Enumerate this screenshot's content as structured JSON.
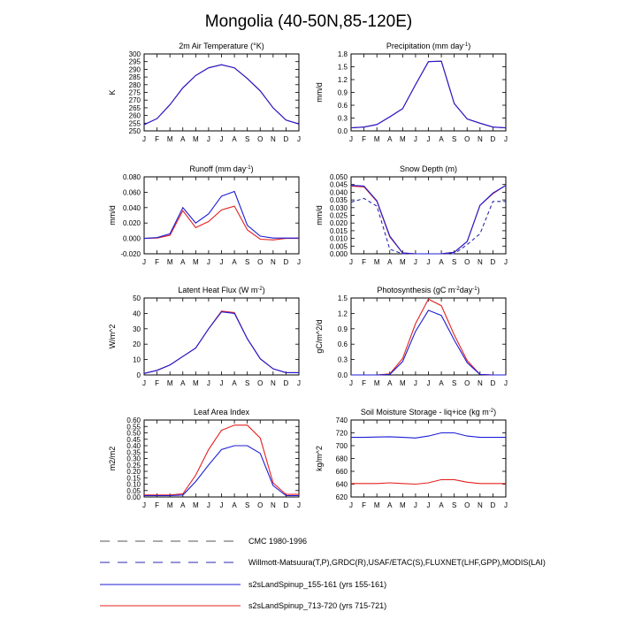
{
  "figure_title": "Mongolia (40-50N,85-120E)",
  "colors": {
    "s2s_155": "#1c1cd6",
    "s2s_713": "#e42020",
    "obs": "#2a2ab0",
    "cmc": "#555555"
  },
  "legend": [
    {
      "label": "CMC 1980-1996",
      "style": "dashed",
      "color": "#555555"
    },
    {
      "label": "Willmott-Matsuura(T,P),GRDC(R),USAF/ETAC(S),FLUXNET(LHF,GPP),MODIS(LAI)",
      "style": "dashed",
      "color": "#2a2ab0"
    },
    {
      "label": "s2sLandSpinup_155-161 (yrs 155-161)",
      "style": "solid",
      "color": "#1c1cd6"
    },
    {
      "label": "s2sLandSpinup_713-720 (yrs 715-721)",
      "style": "solid",
      "color": "#e42020"
    }
  ],
  "chart_data": [
    {
      "type": "line",
      "title": "2m Air Temperature (°K)",
      "ylabel": "K",
      "categories": [
        "J",
        "F",
        "M",
        "A",
        "M",
        "J",
        "J",
        "A",
        "S",
        "O",
        "N",
        "D",
        "J"
      ],
      "ylim": [
        250,
        300
      ],
      "yticks": [
        250,
        255,
        260,
        265,
        270,
        275,
        280,
        285,
        290,
        295,
        300
      ],
      "ytick_labels": [
        "250",
        "255",
        "260",
        "265",
        "270",
        "275",
        "280",
        "285",
        "290",
        "295",
        "300"
      ],
      "series": [
        {
          "color": "#e42020",
          "style": "solid",
          "values": [
            254,
            258,
            267,
            278,
            286,
            291,
            293,
            291,
            284,
            276,
            265,
            257,
            254.5
          ]
        },
        {
          "color": "#1c1cd6",
          "style": "solid",
          "values": [
            254,
            258,
            267,
            278,
            286,
            291,
            293,
            291,
            284,
            276,
            265,
            257,
            254.5
          ]
        }
      ]
    },
    {
      "type": "line",
      "title": "Precipitation (mm day-1)",
      "ylabel": "mm/d",
      "categories": [
        "J",
        "F",
        "M",
        "A",
        "M",
        "J",
        "J",
        "A",
        "S",
        "O",
        "N",
        "D",
        "J"
      ],
      "ylim": [
        0,
        1.8
      ],
      "yticks": [
        0,
        0.3,
        0.6,
        0.9,
        1.2,
        1.5,
        1.8
      ],
      "ytick_labels": [
        "0.0",
        "0.3",
        "0.6",
        "0.9",
        "1.2",
        "1.5",
        "1.8"
      ],
      "series": [
        {
          "color": "#e42020",
          "style": "solid",
          "values": [
            0.07,
            0.09,
            0.15,
            0.33,
            0.52,
            1.08,
            1.62,
            1.63,
            0.64,
            0.28,
            0.18,
            0.09,
            0.07
          ]
        },
        {
          "color": "#1c1cd6",
          "style": "solid",
          "values": [
            0.07,
            0.09,
            0.15,
            0.33,
            0.52,
            1.08,
            1.62,
            1.63,
            0.64,
            0.28,
            0.18,
            0.09,
            0.07
          ]
        }
      ]
    },
    {
      "type": "line",
      "title": "Runoff (mm day-1)",
      "ylabel": "mm/d",
      "categories": [
        "J",
        "F",
        "M",
        "A",
        "M",
        "J",
        "J",
        "A",
        "S",
        "O",
        "N",
        "D",
        "J"
      ],
      "ylim": [
        -0.02,
        0.08
      ],
      "yticks": [
        -0.02,
        0,
        0.02,
        0.04,
        0.06,
        0.08
      ],
      "ytick_labels": [
        "-0.020",
        "0.000",
        "0.020",
        "0.040",
        "0.060",
        "0.080"
      ],
      "series": [
        {
          "color": "#e42020",
          "style": "solid",
          "values": [
            0,
            0.0005,
            0.004,
            0.036,
            0.014,
            0.022,
            0.037,
            0.042,
            0.011,
            -0.001,
            -0.002,
            0,
            0
          ]
        },
        {
          "color": "#1c1cd6",
          "style": "solid",
          "values": [
            0,
            0.001,
            0.006,
            0.04,
            0.02,
            0.032,
            0.055,
            0.061,
            0.017,
            0.003,
            0.0005,
            0.0005,
            0.0005
          ]
        }
      ]
    },
    {
      "type": "line",
      "title": "Snow Depth (m)",
      "ylabel": "mm/d",
      "categories": [
        "J",
        "F",
        "M",
        "A",
        "M",
        "J",
        "J",
        "A",
        "S",
        "O",
        "N",
        "D",
        "J"
      ],
      "ylim": [
        0,
        0.05
      ],
      "yticks": [
        0,
        0.005,
        0.01,
        0.015,
        0.02,
        0.025,
        0.03,
        0.035,
        0.04,
        0.045,
        0.05
      ],
      "ytick_labels": [
        "0.000",
        "0.005",
        "0.010",
        "0.015",
        "0.020",
        "0.025",
        "0.030",
        "0.035",
        "0.040",
        "0.045",
        "0.050"
      ],
      "series": [
        {
          "color": "#2a2ab0",
          "style": "dashed",
          "values": [
            0.0335,
            0.036,
            0.031,
            0.003,
            0,
            0,
            0,
            0,
            0,
            0.006,
            0.013,
            0.034,
            0.034
          ]
        },
        {
          "color": "#e42020",
          "style": "solid",
          "values": [
            0.044,
            0.0435,
            0.034,
            0.011,
            0.0005,
            0,
            0,
            0,
            0.001,
            0.008,
            0.0315,
            0.039,
            0.0445
          ]
        },
        {
          "color": "#1c1cd6",
          "style": "solid",
          "values": [
            0.0445,
            0.044,
            0.0345,
            0.0115,
            0.0005,
            0,
            0,
            0,
            0.001,
            0.008,
            0.0315,
            0.0395,
            0.0445
          ]
        }
      ]
    },
    {
      "type": "line",
      "title": "Latent Heat Flux (W m-2)",
      "ylabel": "W/m^2",
      "categories": [
        "J",
        "F",
        "M",
        "A",
        "M",
        "J",
        "J",
        "A",
        "S",
        "O",
        "N",
        "D",
        "J"
      ],
      "ylim": [
        0,
        50
      ],
      "yticks": [
        0,
        10,
        20,
        30,
        40,
        50
      ],
      "ytick_labels": [
        "0",
        "10",
        "20",
        "30",
        "40",
        "50"
      ],
      "series": [
        {
          "color": "#e42020",
          "style": "solid",
          "values": [
            1,
            3,
            6.5,
            12,
            17.5,
            30,
            41.5,
            40.5,
            23.5,
            10.5,
            4,
            1.5,
            1.5
          ]
        },
        {
          "color": "#1c1cd6",
          "style": "solid",
          "values": [
            1,
            3,
            6.5,
            12,
            17.5,
            30,
            41,
            40,
            23.5,
            10.5,
            4,
            1.5,
            1.5
          ]
        }
      ]
    },
    {
      "type": "line",
      "title": "Photosynthesis (gC m-2day-1)",
      "ylabel": "gC/m^2/d",
      "categories": [
        "J",
        "F",
        "M",
        "A",
        "M",
        "J",
        "J",
        "A",
        "S",
        "O",
        "N",
        "D",
        "J"
      ],
      "ylim": [
        0,
        1.5
      ],
      "yticks": [
        0,
        0.3,
        0.6,
        0.9,
        1.2,
        1.5
      ],
      "ytick_labels": [
        "0.0",
        "0.3",
        "0.6",
        "0.9",
        "1.2",
        "1.5"
      ],
      "series": [
        {
          "color": "#e42020",
          "style": "solid",
          "values": [
            0,
            0,
            0,
            0.02,
            0.32,
            1.0,
            1.48,
            1.35,
            0.78,
            0.28,
            0.01,
            0,
            0
          ]
        },
        {
          "color": "#1c1cd6",
          "style": "solid",
          "values": [
            0,
            0,
            0,
            0.01,
            0.26,
            0.85,
            1.26,
            1.16,
            0.68,
            0.24,
            0.01,
            0,
            0
          ]
        }
      ]
    },
    {
      "type": "line",
      "title": "Leaf Area Index",
      "ylabel": "m2/m2",
      "categories": [
        "J",
        "F",
        "M",
        "A",
        "M",
        "J",
        "J",
        "A",
        "S",
        "O",
        "N",
        "D",
        "J"
      ],
      "ylim": [
        0,
        0.6
      ],
      "yticks": [
        0,
        0.05,
        0.1,
        0.15,
        0.2,
        0.25,
        0.3,
        0.35,
        0.4,
        0.45,
        0.5,
        0.55,
        0.6
      ],
      "ytick_labels": [
        "0.00",
        "0.05",
        "0.10",
        "0.15",
        "0.20",
        "0.25",
        "0.30",
        "0.35",
        "0.40",
        "0.45",
        "0.50",
        "0.55",
        "0.60"
      ],
      "series": [
        {
          "color": "#e42020",
          "style": "solid",
          "values": [
            0.015,
            0.015,
            0.015,
            0.025,
            0.17,
            0.37,
            0.52,
            0.56,
            0.56,
            0.46,
            0.11,
            0.02,
            0.02
          ]
        },
        {
          "color": "#1c1cd6",
          "style": "solid",
          "values": [
            0.01,
            0.01,
            0.01,
            0.015,
            0.12,
            0.25,
            0.37,
            0.4,
            0.4,
            0.34,
            0.09,
            0.01,
            0.01
          ]
        }
      ]
    },
    {
      "type": "line",
      "title": "Soil Moisture Storage - liq+ice (kg m-2)",
      "ylabel": "kg/m^2",
      "categories": [
        "J",
        "F",
        "M",
        "A",
        "M",
        "J",
        "J",
        "A",
        "S",
        "O",
        "N",
        "D",
        "J"
      ],
      "ylim": [
        620,
        740
      ],
      "yticks": [
        620,
        640,
        660,
        680,
        700,
        720,
        740
      ],
      "ytick_labels": [
        "620",
        "640",
        "660",
        "680",
        "700",
        "720",
        "740"
      ],
      "series": [
        {
          "color": "#e42020",
          "style": "solid",
          "values": [
            641,
            641,
            641,
            642,
            641,
            640,
            642,
            647,
            647,
            643,
            641,
            641,
            641
          ]
        },
        {
          "color": "#1c1cd6",
          "style": "solid",
          "values": [
            713,
            713,
            713.5,
            714,
            713,
            712,
            715,
            720,
            720,
            715,
            713,
            713,
            713
          ]
        }
      ]
    }
  ]
}
